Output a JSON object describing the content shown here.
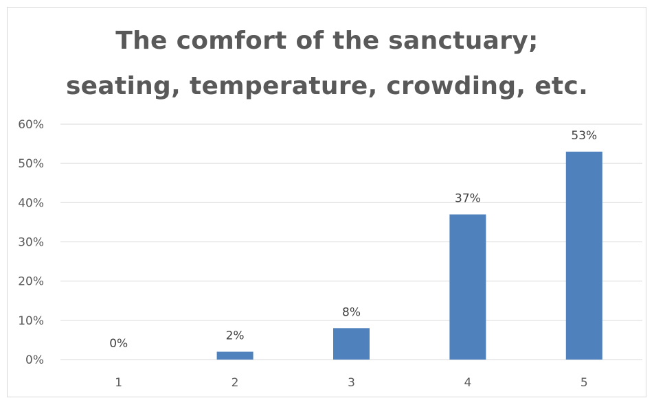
{
  "chart_data": {
    "type": "bar",
    "title_line1": "The comfort of the sanctuary;",
    "title_line2": "seating, temperature, crowding, etc.",
    "categories": [
      "1",
      "2",
      "3",
      "4",
      "5"
    ],
    "values": [
      0,
      2,
      8,
      37,
      53
    ],
    "data_labels": [
      "0%",
      "2%",
      "8%",
      "37%",
      "53%"
    ],
    "y_ticks": [
      0,
      10,
      20,
      30,
      40,
      50,
      60
    ],
    "y_tick_labels": [
      "0%",
      "10%",
      "20%",
      "30%",
      "40%",
      "50%",
      "60%"
    ],
    "ylim": [
      0,
      60
    ],
    "grid": true,
    "legend": "none",
    "bar_color": "#4f81bd",
    "grid_color": "#d9d9d9",
    "title_color": "#595959"
  }
}
